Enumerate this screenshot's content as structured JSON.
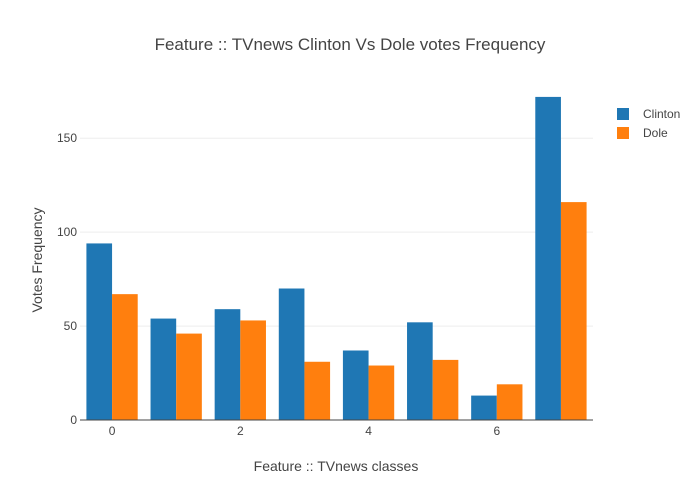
{
  "chart_data": {
    "type": "bar",
    "title": "Feature :: TVnews Clinton Vs Dole votes Frequency",
    "xlabel": "Feature :: TVnews classes",
    "ylabel": "Votes Frequency",
    "categories": [
      0,
      1,
      2,
      3,
      4,
      5,
      6,
      7
    ],
    "x_tick_labels": [
      "0",
      "2",
      "4",
      "6"
    ],
    "y_ticks": [
      0,
      50,
      100,
      150
    ],
    "ylim": [
      0,
      181
    ],
    "xlim": [
      -0.5,
      7.5
    ],
    "grid": true,
    "legend_position": "top-right",
    "series": [
      {
        "name": "Clinton",
        "color": "#1f77b4",
        "values": [
          94,
          54,
          59,
          70,
          37,
          52,
          13,
          172
        ]
      },
      {
        "name": "Dole",
        "color": "#ff7f0e",
        "values": [
          67,
          46,
          53,
          31,
          29,
          32,
          19,
          116
        ]
      }
    ]
  }
}
